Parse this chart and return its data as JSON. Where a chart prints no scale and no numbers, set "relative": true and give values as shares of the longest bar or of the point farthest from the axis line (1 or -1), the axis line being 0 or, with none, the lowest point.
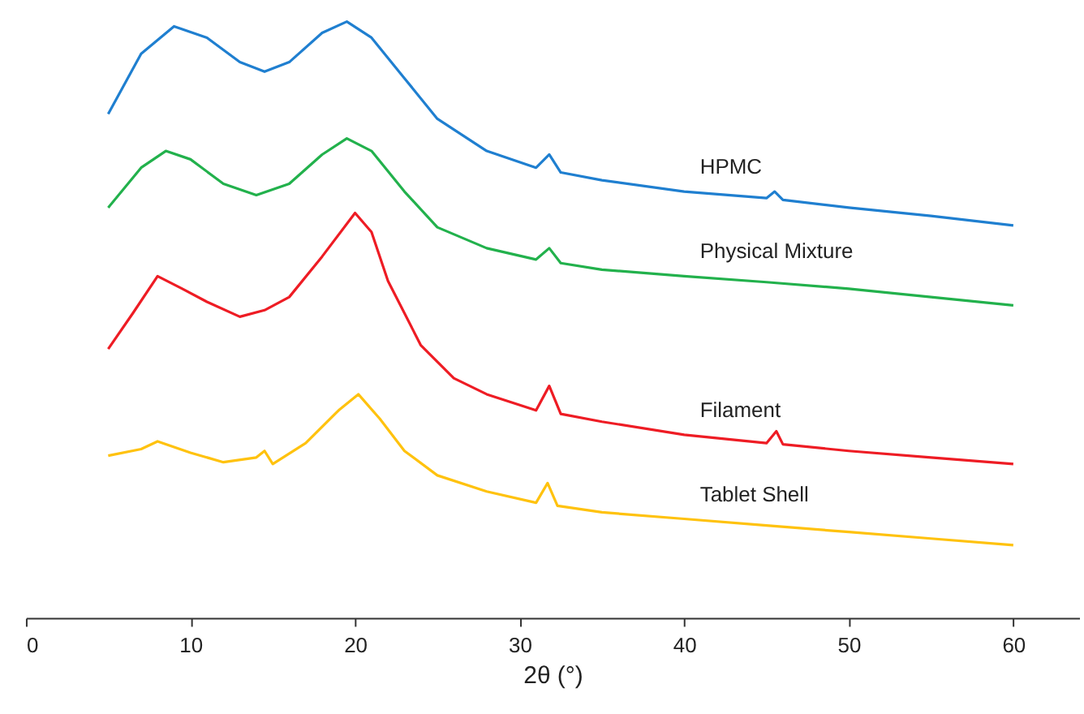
{
  "chart_data": {
    "type": "line",
    "relative": true,
    "xlabel": "2θ (°)",
    "xlim": [
      0,
      64
    ],
    "xticks": [
      0,
      10,
      20,
      30,
      40,
      50,
      60
    ],
    "grid": false,
    "marker": "none",
    "line_style": "solid",
    "x": [
      5,
      7,
      9,
      11,
      13,
      14.5,
      16,
      18,
      19.5,
      21,
      23,
      25,
      28,
      31,
      31.8,
      32.5,
      35,
      40,
      45,
      45.5,
      46,
      50,
      55,
      60
    ],
    "series": [
      {
        "name": "HPMC",
        "color": "#1f7fd0",
        "values": [
          0.845,
          0.946,
          0.992,
          0.973,
          0.932,
          0.916,
          0.932,
          0.981,
          1.0,
          0.973,
          0.905,
          0.837,
          0.783,
          0.755,
          0.777,
          0.747,
          0.734,
          0.715,
          0.704,
          0.715,
          0.701,
          0.688,
          0.674,
          0.658
        ]
      },
      {
        "name": "Physical Mixture",
        "color": "#22b14c",
        "x": [
          5,
          7,
          8.5,
          10,
          12,
          14,
          16,
          18,
          19.5,
          21,
          23,
          25,
          28,
          31,
          31.8,
          32.5,
          35,
          40,
          45,
          50,
          55,
          60
        ],
        "values": [
          0.688,
          0.755,
          0.783,
          0.769,
          0.728,
          0.709,
          0.728,
          0.777,
          0.804,
          0.783,
          0.715,
          0.655,
          0.62,
          0.601,
          0.62,
          0.595,
          0.584,
          0.573,
          0.563,
          0.552,
          0.538,
          0.524
        ]
      },
      {
        "name": "Filament",
        "color": "#ee1c24",
        "x": [
          5,
          6.5,
          8,
          9.5,
          11,
          13,
          14.5,
          16,
          18,
          20,
          21,
          22,
          24,
          26,
          28,
          31,
          31.8,
          32.5,
          35,
          40,
          45,
          45.6,
          46,
          50,
          55,
          60
        ],
        "values": [
          0.451,
          0.511,
          0.573,
          0.552,
          0.53,
          0.505,
          0.516,
          0.538,
          0.606,
          0.679,
          0.647,
          0.565,
          0.457,
          0.402,
          0.375,
          0.348,
          0.389,
          0.342,
          0.329,
          0.307,
          0.293,
          0.313,
          0.291,
          0.28,
          0.269,
          0.258
        ]
      },
      {
        "name": "Tablet Shell",
        "color": "#ffc20e",
        "x": [
          5,
          7,
          8,
          10,
          12,
          14,
          14.5,
          15,
          17,
          19,
          20.2,
          21.5,
          23,
          25,
          28,
          31,
          31.7,
          32.3,
          35,
          40,
          45,
          50,
          55,
          60
        ],
        "values": [
          0.272,
          0.283,
          0.296,
          0.277,
          0.261,
          0.269,
          0.28,
          0.258,
          0.293,
          0.348,
          0.375,
          0.334,
          0.28,
          0.239,
          0.212,
          0.193,
          0.226,
          0.188,
          0.177,
          0.166,
          0.155,
          0.144,
          0.133,
          0.122
        ]
      }
    ]
  }
}
